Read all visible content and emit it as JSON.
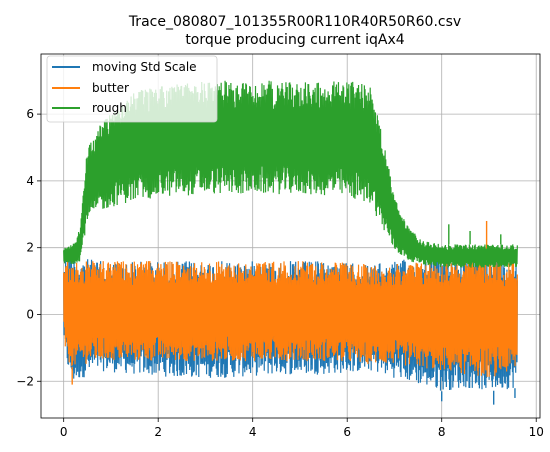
{
  "chart_data": {
    "type": "line",
    "title": "Trace_080807_101355R00R110R40R50R60.csv",
    "subtitle": "torque producing current iqAx4",
    "xlabel": "",
    "ylabel": "",
    "xlim": [
      -0.48,
      10.08
    ],
    "ylim": [
      -3.1,
      7.8
    ],
    "xticks": [
      0,
      2,
      4,
      6,
      8,
      10
    ],
    "yticks": [
      -2,
      0,
      2,
      4,
      6
    ],
    "xtick_labels": [
      "0",
      "2",
      "4",
      "6",
      "8",
      "10"
    ],
    "ytick_labels": [
      "−2",
      "0",
      "2",
      "4",
      "6"
    ],
    "grid": true,
    "legend_position": "top-left",
    "series": [
      {
        "name": "moving Std Scale",
        "color": "#1f77b4",
        "x_range": [
          0,
          9.6
        ],
        "envelope": {
          "x": [
            0,
            0.05,
            0.2,
            0.4,
            0.8,
            1.5,
            2.5,
            3.5,
            4.5,
            5.5,
            6.5,
            7.0,
            7.5,
            8.0,
            8.5,
            9.0,
            9.6
          ],
          "upper": [
            1.6,
            1.9,
            1.8,
            1.7,
            1.6,
            1.6,
            1.6,
            1.6,
            1.6,
            1.6,
            1.5,
            1.6,
            1.7,
            1.8,
            1.8,
            1.9,
            1.8
          ],
          "lower": [
            -0.7,
            -1.5,
            -2.1,
            -1.9,
            -1.7,
            -1.8,
            -1.9,
            -1.9,
            -1.8,
            -1.8,
            -1.7,
            -1.9,
            -2.1,
            -2.3,
            -2.2,
            -2.3,
            -2.2
          ]
        }
      },
      {
        "name": "butter",
        "color": "#ff7f0e",
        "x_range": [
          0,
          9.6
        ],
        "envelope": {
          "x": [
            0,
            0.05,
            0.2,
            0.4,
            0.8,
            1.5,
            2.5,
            3.5,
            4.5,
            5.5,
            6.5,
            7.0,
            7.5,
            8.0,
            8.5,
            9.0,
            9.6
          ],
          "upper": [
            1.4,
            1.6,
            1.6,
            1.6,
            1.6,
            1.6,
            1.6,
            1.6,
            1.6,
            1.6,
            1.5,
            1.5,
            1.6,
            1.6,
            1.7,
            1.8,
            1.6
          ],
          "lower": [
            -0.5,
            -1.4,
            -1.6,
            -1.5,
            -1.4,
            -1.4,
            -1.4,
            -1.4,
            -1.4,
            -1.4,
            -1.5,
            -1.5,
            -1.6,
            -1.7,
            -1.8,
            -1.9,
            -1.7
          ]
        }
      },
      {
        "name": "rough",
        "color": "#2ca02c",
        "x_range": [
          0,
          9.6
        ],
        "envelope": {
          "x": [
            0,
            0.2,
            0.35,
            0.5,
            0.8,
            1.2,
            2.0,
            3.0,
            4.0,
            5.0,
            6.0,
            6.5,
            6.8,
            7.0,
            7.3,
            7.6,
            8.0,
            8.5,
            9.0,
            9.6
          ],
          "upper": [
            2.0,
            2.1,
            2.6,
            5.0,
            5.8,
            6.5,
            6.9,
            7.0,
            7.0,
            7.0,
            7.0,
            6.9,
            5.0,
            3.5,
            2.6,
            2.2,
            2.1,
            2.1,
            2.1,
            2.1
          ],
          "lower": [
            1.5,
            1.5,
            1.6,
            2.8,
            3.1,
            3.3,
            3.5,
            3.6,
            3.6,
            3.6,
            3.5,
            3.3,
            2.4,
            1.9,
            1.6,
            1.5,
            1.4,
            1.4,
            1.4,
            1.4
          ]
        },
        "spikes": [
          {
            "x": 8.15,
            "y": 2.7
          },
          {
            "x": 8.6,
            "y": 2.5
          },
          {
            "x": 9.25,
            "y": 2.4
          }
        ]
      }
    ],
    "extra_spikes": {
      "butter": [
        {
          "x": 8.95,
          "y": 2.8
        },
        {
          "x": 0.18,
          "y": -2.1
        }
      ],
      "moving Std Scale": [
        {
          "x": 8.0,
          "y": -2.6
        },
        {
          "x": 9.55,
          "y": -2.5
        },
        {
          "x": 0.22,
          "y": 2.1
        },
        {
          "x": 9.1,
          "y": -2.7
        }
      ]
    }
  }
}
